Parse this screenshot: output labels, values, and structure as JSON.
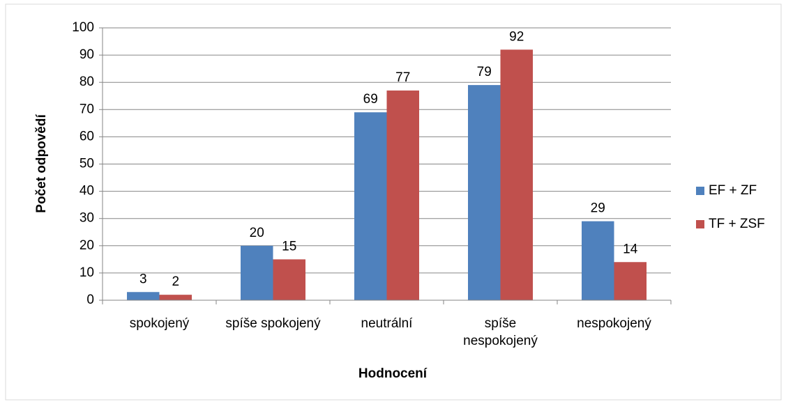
{
  "chart_data": {
    "type": "bar",
    "categories": [
      "spokojený",
      "spíše spokojený",
      "neutrální",
      "spíše nespokojený",
      "nespokojený"
    ],
    "series": [
      {
        "name": "EF + ZF",
        "color": "#4f81bd",
        "values": [
          3,
          20,
          69,
          79,
          29
        ]
      },
      {
        "name": "TF + ZSF",
        "color": "#c0504d",
        "values": [
          2,
          15,
          77,
          92,
          14
        ]
      }
    ],
    "ylim": [
      0,
      100
    ],
    "yticks": [
      0,
      10,
      20,
      30,
      40,
      50,
      60,
      70,
      80,
      90,
      100
    ],
    "grid": true,
    "legend": "right",
    "x_label": "Hodnocení",
    "y_label": "Počet odpovědí"
  }
}
